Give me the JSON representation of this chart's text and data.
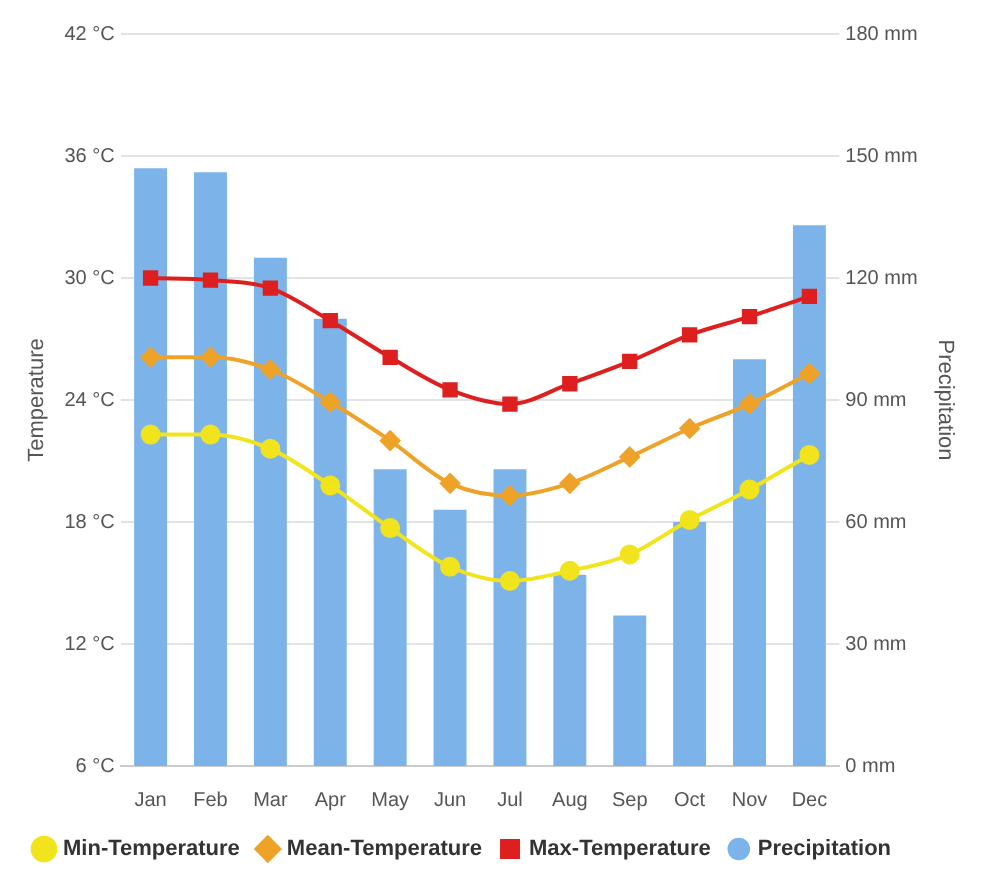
{
  "chart_data": {
    "type": "line",
    "ylabel": "Temperature",
    "y2label": "Precipitation",
    "categories": [
      "Jan",
      "Feb",
      "Mar",
      "Apr",
      "May",
      "Jun",
      "Jul",
      "Aug",
      "Sep",
      "Oct",
      "Nov",
      "Dec"
    ],
    "series": [
      {
        "name": "Min-Temperature",
        "color": "#f2e41c",
        "marker": "circle",
        "values": [
          22.3,
          22.3,
          21.6,
          19.8,
          17.7,
          15.8,
          15.1,
          15.6,
          16.4,
          18.1,
          19.6,
          21.3
        ]
      },
      {
        "name": "Mean-Temperature",
        "color": "#eea328",
        "marker": "diamond",
        "values": [
          26.1,
          26.1,
          25.5,
          23.9,
          22,
          19.9,
          19.3,
          19.9,
          21.2,
          22.6,
          23.8,
          25.3
        ]
      },
      {
        "name": "Max-Temperature",
        "color": "#dd1f1f",
        "marker": "square",
        "values": [
          30,
          29.9,
          29.5,
          27.9,
          26.1,
          24.5,
          23.8,
          24.8,
          25.9,
          27.2,
          28.1,
          29.1
        ]
      },
      {
        "name": "Precipitation",
        "type": "bar",
        "axis": "y2",
        "color": "#7cb4ea",
        "values": [
          147,
          146,
          125,
          110,
          73,
          63,
          73,
          47,
          37,
          60,
          100,
          133
        ]
      }
    ],
    "ylim": [
      6,
      42
    ],
    "yticks": [
      {
        "value": 6,
        "label": "6 °C"
      },
      {
        "value": 12,
        "label": "12 °C"
      },
      {
        "value": 18,
        "label": "18 °C"
      },
      {
        "value": 24,
        "label": "24 °C"
      },
      {
        "value": 30,
        "label": "30 °C"
      },
      {
        "value": 36,
        "label": "36 °C"
      },
      {
        "value": 42,
        "label": "42 °C"
      }
    ],
    "y2lim": [
      0,
      180
    ],
    "y2ticks": [
      {
        "value": 0,
        "label": "0 mm"
      },
      {
        "value": 30,
        "label": "30 mm"
      },
      {
        "value": 60,
        "label": "60 mm"
      },
      {
        "value": 90,
        "label": "90 mm"
      },
      {
        "value": 120,
        "label": "120 mm"
      },
      {
        "value": 150,
        "label": "150 mm"
      },
      {
        "value": 180,
        "label": "180 mm"
      }
    ],
    "grid": "y",
    "legend": "bottom"
  }
}
